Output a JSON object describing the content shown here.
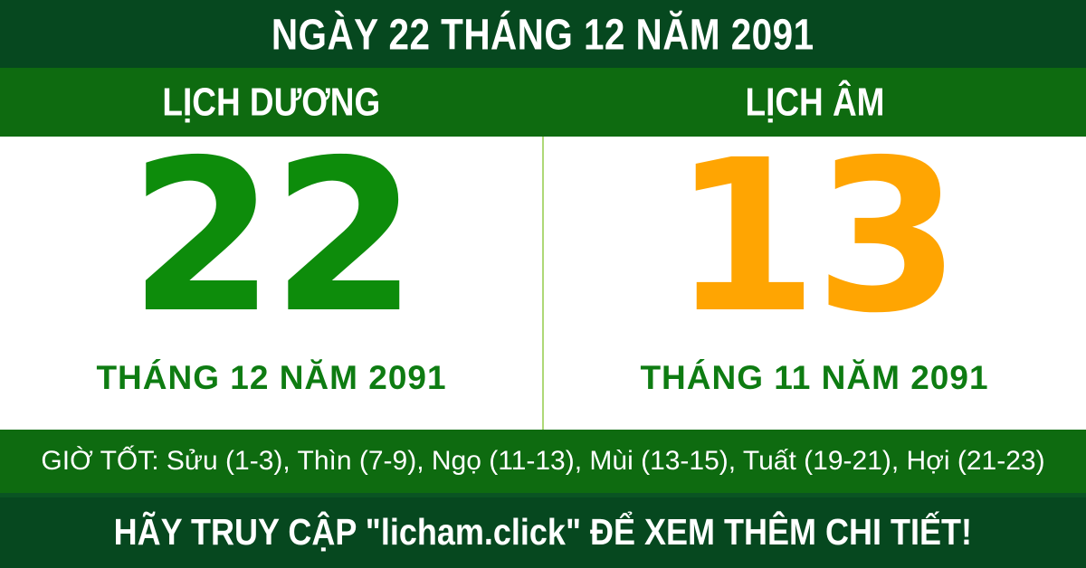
{
  "colors": {
    "dark_green": "#06481f",
    "green": "#0e6b10",
    "solar_day": "#0d8c0b",
    "lunar_day": "#ffa502",
    "month_label": "#0e7c12",
    "divider": "#aed878",
    "text_light": "#ffffff"
  },
  "title_bar": {
    "date_title": "NGÀY 22 THÁNG 12 NĂM 2091"
  },
  "calendar": {
    "solar": {
      "header": "LỊCH DƯƠNG",
      "day": "22",
      "month_year": "THÁNG 12 NĂM 2091"
    },
    "lunar": {
      "header": "LỊCH ÂM",
      "day": "13",
      "month_year": "THÁNG 11 NĂM 2091"
    }
  },
  "good_hours": {
    "text": "GIỜ TỐT: Sửu (1-3), Thìn (7-9), Ngọ (11-13), Mùi (13-15), Tuất (19-21), Hợi (21-23)"
  },
  "footer": {
    "cta": "HÃY TRUY CẬP \"licham.click\" ĐỂ XEM THÊM CHI TIẾT!"
  }
}
